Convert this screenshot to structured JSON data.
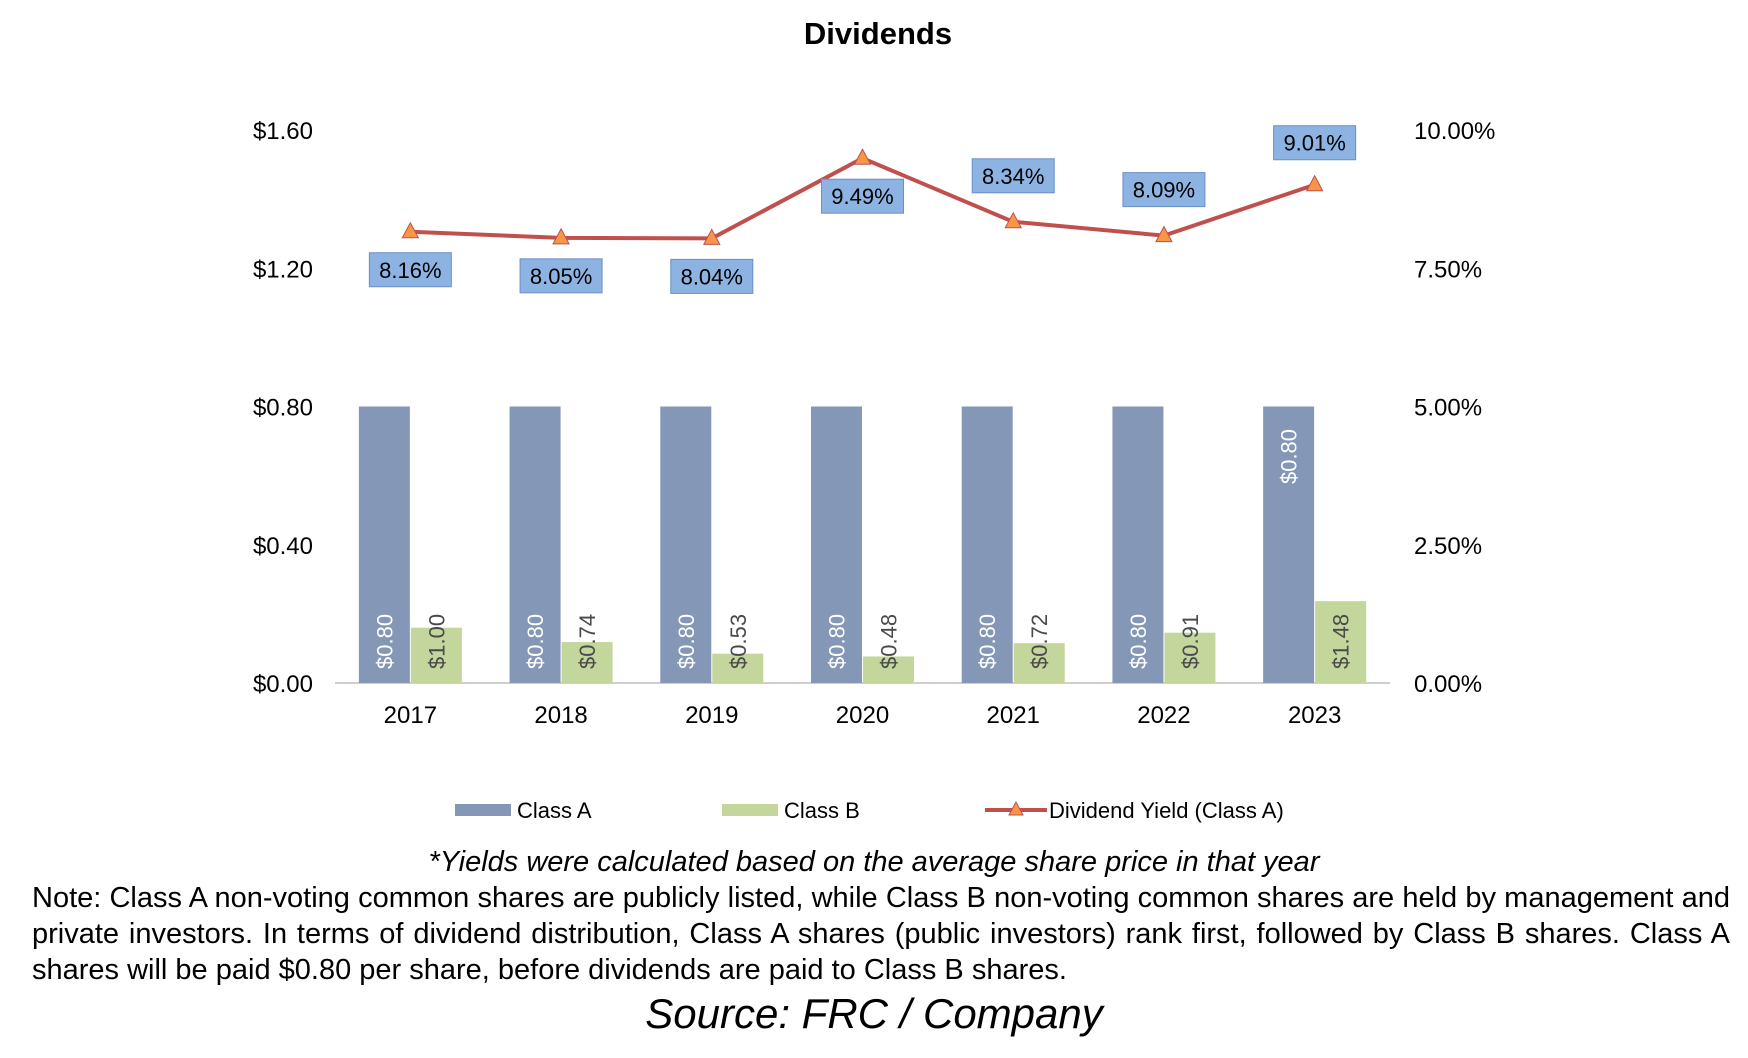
{
  "chart_data": {
    "type": "bar",
    "title": "Dividends",
    "categories": [
      "2017",
      "2018",
      "2019",
      "2020",
      "2021",
      "2022",
      "2023"
    ],
    "series": [
      {
        "name": "Class A",
        "kind": "bar",
        "axis": "left",
        "color": "#8497B7",
        "values": [
          0.8,
          0.8,
          0.8,
          0.8,
          0.8,
          0.8,
          0.8
        ],
        "labels": [
          "$0.80",
          "$0.80",
          "$0.80",
          "$0.80",
          "$0.80",
          "$0.80",
          "$0.80"
        ]
      },
      {
        "name": "Class B",
        "kind": "bar",
        "axis": "right",
        "color": "#C3D69B",
        "values": [
          1.0,
          0.74,
          0.53,
          0.48,
          0.72,
          0.91,
          1.48
        ],
        "labels": [
          "$1.00",
          "$0.74",
          "$0.53",
          "$0.48",
          "$0.72",
          "$0.91",
          "$1.48"
        ]
      },
      {
        "name": "Dividend Yield (Class A)",
        "kind": "line",
        "axis": "right",
        "color": "#C0504D",
        "values": [
          8.16,
          8.05,
          8.04,
          9.49,
          8.34,
          8.09,
          9.01
        ],
        "labels": [
          "8.16%",
          "8.05%",
          "8.04%",
          "9.49%",
          "8.34%",
          "8.09%",
          "9.01%"
        ]
      }
    ],
    "y_left": {
      "ticks": [
        "$0.00",
        "$0.40",
        "$0.80",
        "$1.20",
        "$1.60"
      ],
      "ylim": [
        0,
        1.6
      ]
    },
    "y_right": {
      "ticks": [
        "0.00%",
        "2.50%",
        "5.00%",
        "7.50%",
        "10.00%"
      ],
      "ylim": [
        0,
        10
      ]
    },
    "legend": "bottom",
    "grid": false
  },
  "captions": {
    "yield_note": "*Yields were calculated based on the average share price in that year",
    "note": "Note: Class A non-voting common shares are publicly listed, while Class B non-voting common shares are held by management and private investors. In terms of dividend distribution, Class A shares (public investors) rank first, followed by Class B shares. Class A shares will be paid $0.80 per share, before dividends are paid to Class B shares.",
    "source": "Source: FRC / Company"
  }
}
